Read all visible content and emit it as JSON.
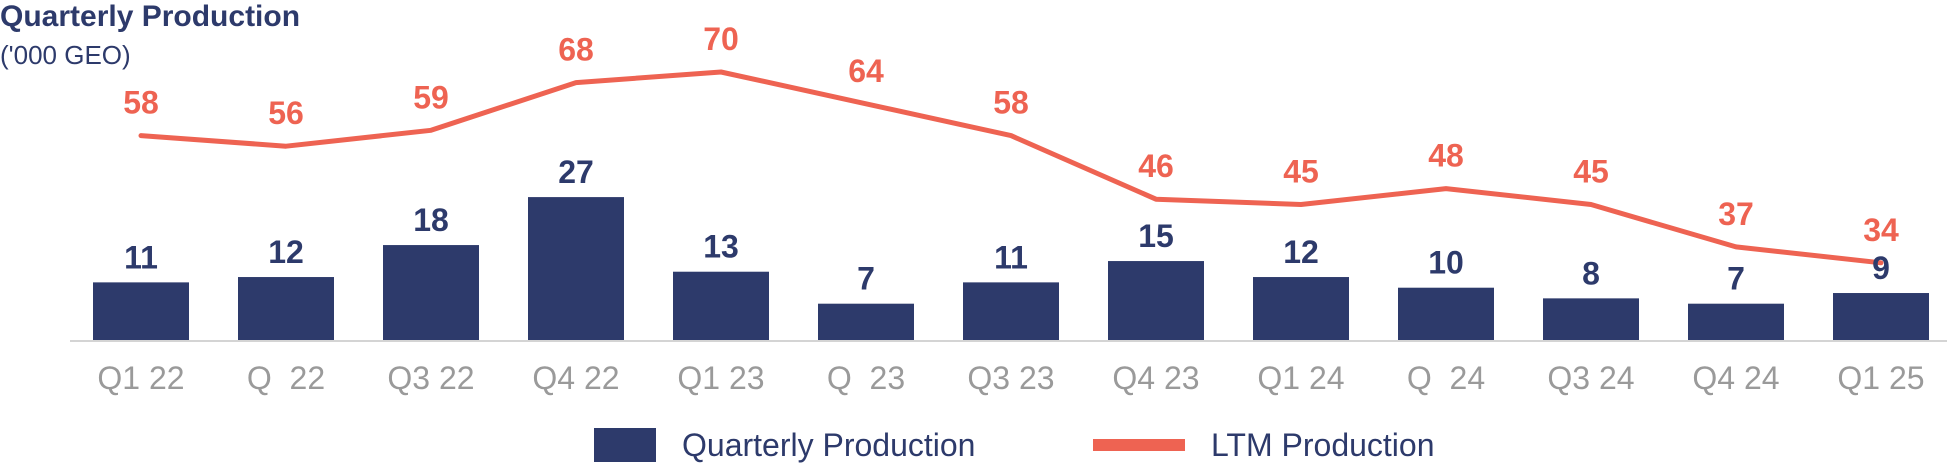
{
  "chart_data": {
    "type": "bar",
    "title": "Quarterly Production",
    "subtitle": "('000 GEO)",
    "categories": [
      "Q1 22",
      "Q  22",
      "Q3 22",
      "Q4 22",
      "Q1 23",
      "Q  23",
      "Q3 23",
      "Q4 23",
      "Q1 24",
      "Q  24",
      "Q3 24",
      "Q4 24",
      "Q1 25"
    ],
    "series": [
      {
        "name": "Quarterly Production",
        "type": "bar",
        "color": "#2D3A6B",
        "values": [
          11,
          12,
          18,
          27,
          13,
          7,
          11,
          15,
          12,
          10,
          8,
          7,
          9
        ]
      },
      {
        "name": "LTM Production",
        "type": "line",
        "color": "#EE6352",
        "values": [
          58,
          56,
          59,
          68,
          70,
          64,
          58,
          46,
          45,
          48,
          45,
          37,
          34
        ]
      }
    ],
    "xlabel": "",
    "ylabel": "",
    "ylim": [
      0,
      80
    ],
    "grid": false,
    "legend_position": "bottom"
  }
}
